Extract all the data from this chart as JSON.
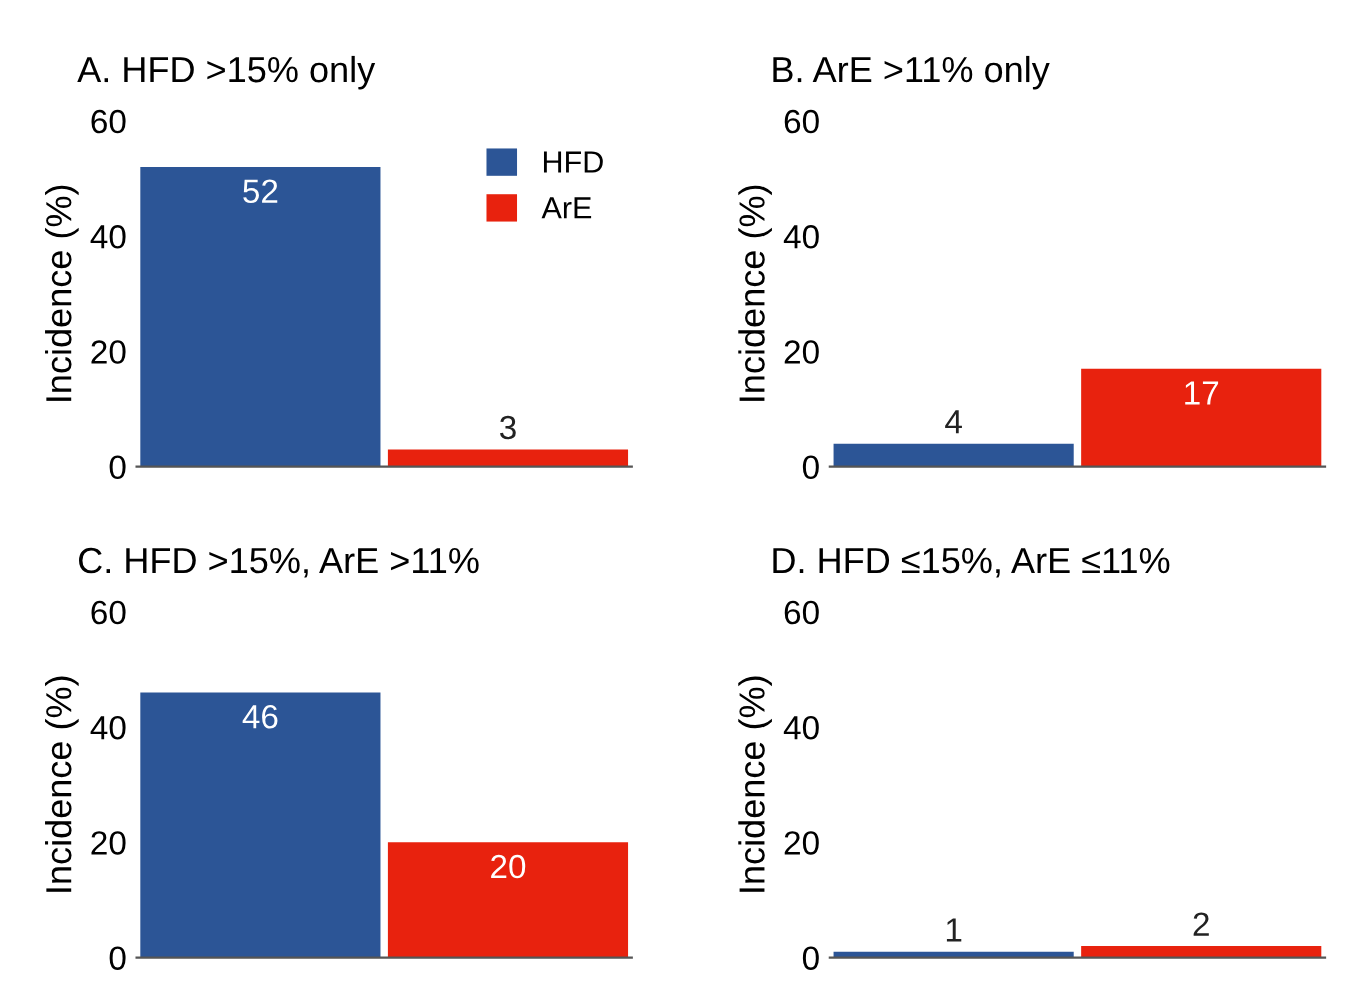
{
  "chart_data": [
    {
      "type": "bar",
      "title": "A. HFD >15% only",
      "ylabel": "Incidence (%)",
      "categories": [
        null,
        null
      ],
      "series": [
        {
          "name": "HFD",
          "color": "#2c5596",
          "values": [
            52,
            null
          ]
        },
        {
          "name": "ArE",
          "color": "#e8220e",
          "values": [
            null,
            3
          ]
        }
      ],
      "ylim": [
        0,
        60
      ],
      "yticks": [
        0,
        20,
        40,
        60
      ],
      "grid": false,
      "legend": "top right",
      "data_labels": true
    },
    {
      "type": "bar",
      "title": "B. ArE >11% only",
      "ylabel": "Incidence (%)",
      "categories": [
        null,
        null
      ],
      "series": [
        {
          "color": "#2c5596",
          "values": [
            4,
            null
          ]
        },
        {
          "color": "#e8220e",
          "values": [
            null,
            17
          ]
        }
      ],
      "ylim": [
        0,
        60
      ],
      "yticks": [
        0,
        20,
        40,
        60
      ],
      "grid": false,
      "data_labels": true
    },
    {
      "type": "bar",
      "title": "C. HFD >15%, ArE >11%",
      "ylabel": "Incidence (%)",
      "categories": [
        null,
        null
      ],
      "series": [
        {
          "color": "#2c5596",
          "values": [
            46,
            null
          ]
        },
        {
          "color": "#e8220e",
          "values": [
            null,
            20
          ]
        }
      ],
      "ylim": [
        0,
        60
      ],
      "yticks": [
        0,
        20,
        40,
        60
      ],
      "grid": false,
      "data_labels": true
    },
    {
      "type": "bar",
      "title": "D. HFD ≤15%, ArE ≤11%",
      "ylabel": "Incidence (%)",
      "categories": [
        null,
        null
      ],
      "series": [
        {
          "color": "#2c5596",
          "values": [
            1,
            null
          ]
        },
        {
          "color": "#e8220e",
          "values": [
            null,
            2
          ]
        }
      ],
      "ylim": [
        0,
        60
      ],
      "yticks": [
        0,
        20,
        40,
        60
      ],
      "grid": false,
      "data_labels": true
    }
  ]
}
